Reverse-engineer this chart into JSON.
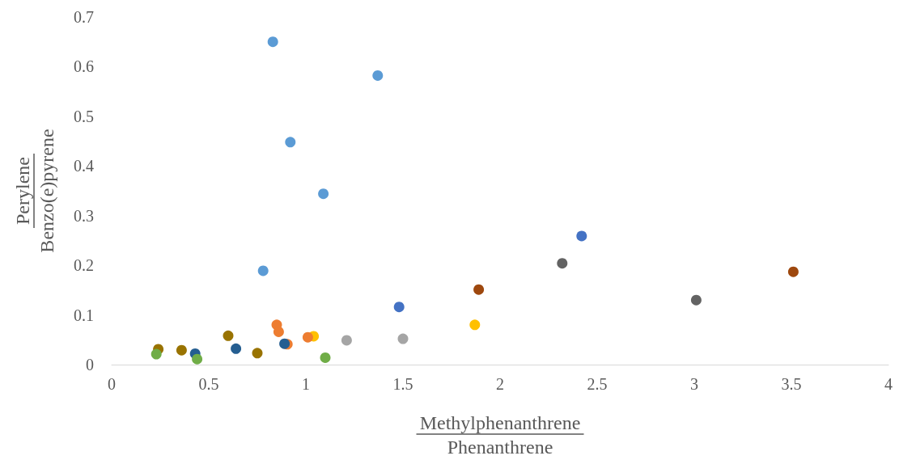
{
  "chart_data": {
    "type": "scatter",
    "xlabel": "Methylphenanthrene\nPhenanthrene",
    "ylabel": "Perylene\nBenzo(e)pyrene",
    "xlim": [
      0,
      4
    ],
    "xticks": [
      0,
      0.5,
      1,
      1.5,
      2,
      2.5,
      3,
      3.5,
      4
    ],
    "ylim": [
      0,
      0.7
    ],
    "yticks": [
      0,
      0.1,
      0.2,
      0.3,
      0.4,
      0.5,
      0.6,
      0.7
    ],
    "grid": false,
    "marker": "circle",
    "series": [
      {
        "color": "#5b9bd5",
        "x": [
          0.83,
          1.37,
          0.92,
          1.09,
          0.78
        ],
        "values": [
          0.65,
          0.582,
          0.448,
          0.344,
          0.189
        ]
      },
      {
        "color": "#4472c4",
        "x": [
          2.42,
          1.48
        ],
        "values": [
          0.259,
          0.116
        ]
      },
      {
        "color": "#636363",
        "x": [
          2.32,
          3.01
        ],
        "values": [
          0.204,
          0.13
        ]
      },
      {
        "color": "#9e480e",
        "x": [
          1.89,
          3.51
        ],
        "values": [
          0.151,
          0.187
        ]
      },
      {
        "color": "#ffc000",
        "x": [
          1.87,
          1.04
        ],
        "values": [
          0.08,
          0.057
        ]
      },
      {
        "color": "#a5a5a5",
        "x": [
          1.21,
          1.5
        ],
        "values": [
          0.049,
          0.052
        ]
      },
      {
        "color": "#ed7d31",
        "x": [
          0.85,
          0.86,
          1.01,
          0.905
        ],
        "values": [
          0.08,
          0.066,
          0.055,
          0.041
        ]
      },
      {
        "color": "#255e91",
        "x": [
          0.43,
          0.64,
          0.89
        ],
        "values": [
          0.022,
          0.032,
          0.042
        ]
      },
      {
        "color": "#997300",
        "x": [
          0.24,
          0.36,
          0.6,
          0.75
        ],
        "values": [
          0.031,
          0.029,
          0.058,
          0.023
        ]
      },
      {
        "color": "#70ad47",
        "x": [
          0.23,
          0.44,
          1.1
        ],
        "values": [
          0.021,
          0.011,
          0.014
        ]
      }
    ]
  }
}
